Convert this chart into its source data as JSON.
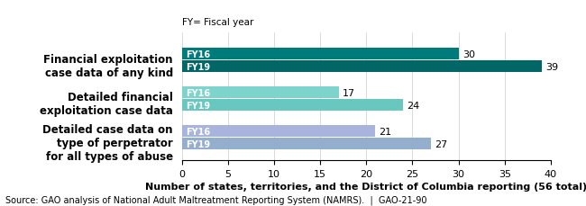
{
  "categories": [
    "Financial exploitation\ncase data of any kind",
    "Detailed financial\nexploitation case data",
    "Detailed case data on\ntype of perpetrator\nfor all types of abuse"
  ],
  "fy16_values": [
    30,
    17,
    21
  ],
  "fy19_values": [
    39,
    24,
    27
  ],
  "fy16_colors": [
    "#007B7B",
    "#7DD4CC",
    "#A8B4DC"
  ],
  "fy19_colors": [
    "#006666",
    "#68C8C0",
    "#94AECE"
  ],
  "xlim": [
    0,
    40
  ],
  "xticks": [
    0,
    5,
    10,
    15,
    20,
    25,
    30,
    35,
    40
  ],
  "xlabel_bold": "Number of states, territories, and the District of Columbia reporting",
  "xlabel_normal": " (56 total)",
  "note": "FY= Fiscal year",
  "source": "Source: GAO analysis of National Adult Maltreatment Reporting System (NAMRS).  |  GAO-21-90",
  "background_color": "#FFFFFF"
}
